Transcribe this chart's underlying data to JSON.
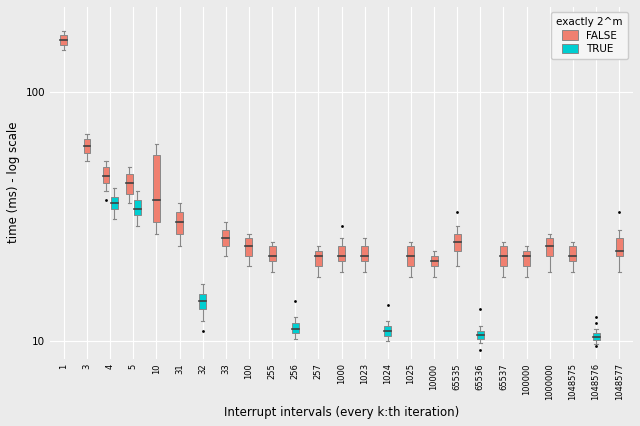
{
  "xlabel": "Interrupt intervals (every k:th iteration)",
  "ylabel": "time (ms) - log scale",
  "background_color": "#EBEBEB",
  "grid_color": "#FFFFFF",
  "false_color": "#F08070",
  "true_color": "#00CED1",
  "median_color": "#404040",
  "whisker_color": "#888888",
  "box_edge_color": "#888888",
  "legend_title": "exactly 2^m",
  "categories": [
    "1",
    "3",
    "4",
    "5",
    "10",
    "31",
    "32",
    "33",
    "100",
    "255",
    "256",
    "257",
    "1000",
    "1023",
    "1024",
    "1025",
    "10000",
    "65535",
    "65536",
    "65537",
    "100000",
    "1000000",
    "1048575",
    "1048576",
    "1048577"
  ],
  "false_data": {
    "1": {
      "q1": 155,
      "med": 162,
      "q3": 170,
      "whislo": 148,
      "whishi": 176,
      "fliers": []
    },
    "3": {
      "q1": 57,
      "med": 61,
      "q3": 65,
      "whislo": 53,
      "whishi": 68,
      "fliers": []
    },
    "4": {
      "q1": 43,
      "med": 46,
      "q3": 50,
      "whislo": 40,
      "whishi": 53,
      "fliers": [
        37
      ]
    },
    "5": {
      "q1": 39,
      "med": 43,
      "q3": 47,
      "whislo": 36,
      "whishi": 50,
      "fliers": []
    },
    "10": {
      "q1": 30,
      "med": 37,
      "q3": 56,
      "whislo": 27,
      "whishi": 62,
      "fliers": []
    },
    "31": {
      "q1": 27,
      "med": 30,
      "q3": 33,
      "whislo": 24,
      "whishi": 36,
      "fliers": []
    },
    "33": {
      "q1": 24,
      "med": 26,
      "q3": 28,
      "whislo": 22,
      "whishi": 30,
      "fliers": []
    },
    "100": {
      "q1": 22,
      "med": 24,
      "q3": 26,
      "whislo": 20,
      "whishi": 27,
      "fliers": []
    },
    "255": {
      "q1": 21,
      "med": 22,
      "q3": 24,
      "whislo": 19,
      "whishi": 25,
      "fliers": []
    },
    "257": {
      "q1": 20,
      "med": 22,
      "q3": 23,
      "whislo": 18,
      "whishi": 24,
      "fliers": []
    },
    "1000": {
      "q1": 21,
      "med": 22,
      "q3": 24,
      "whislo": 19,
      "whishi": 26,
      "fliers": [
        29
      ]
    },
    "1023": {
      "q1": 21,
      "med": 22,
      "q3": 24,
      "whislo": 19,
      "whishi": 26,
      "fliers": []
    },
    "1025": {
      "q1": 20,
      "med": 22,
      "q3": 24,
      "whislo": 18,
      "whishi": 25,
      "fliers": []
    },
    "10000": {
      "q1": 20,
      "med": 21,
      "q3": 22,
      "whislo": 18,
      "whishi": 23,
      "fliers": []
    },
    "65535": {
      "q1": 23,
      "med": 25,
      "q3": 27,
      "whislo": 20,
      "whishi": 29,
      "fliers": [
        33
      ]
    },
    "65537": {
      "q1": 20,
      "med": 22,
      "q3": 24,
      "whislo": 18,
      "whishi": 25,
      "fliers": []
    },
    "100000": {
      "q1": 20,
      "med": 22,
      "q3": 23,
      "whislo": 18,
      "whishi": 24,
      "fliers": []
    },
    "1000000": {
      "q1": 22,
      "med": 24,
      "q3": 26,
      "whislo": 19,
      "whishi": 27,
      "fliers": []
    },
    "1048575": {
      "q1": 21,
      "med": 22,
      "q3": 24,
      "whislo": 19,
      "whishi": 25,
      "fliers": []
    },
    "1048577": {
      "q1": 22,
      "med": 23,
      "q3": 26,
      "whislo": 19,
      "whishi": 28,
      "fliers": [
        33
      ]
    }
  },
  "true_data": {
    "4": {
      "q1": 34,
      "med": 36,
      "q3": 38,
      "whislo": 31,
      "whishi": 41,
      "fliers": []
    },
    "5": {
      "q1": 32,
      "med": 34,
      "q3": 37,
      "whislo": 29,
      "whishi": 40,
      "fliers": []
    },
    "32": {
      "q1": 13.5,
      "med": 14.5,
      "q3": 15.5,
      "whislo": 12,
      "whishi": 17,
      "fliers": [
        11
      ]
    },
    "256": {
      "q1": 10.8,
      "med": 11.2,
      "q3": 11.8,
      "whislo": 10.2,
      "whishi": 12.5,
      "fliers": [
        14.5
      ]
    },
    "1024": {
      "q1": 10.5,
      "med": 11,
      "q3": 11.5,
      "whislo": 10,
      "whishi": 12,
      "fliers": [
        14
      ]
    },
    "65536": {
      "q1": 10.2,
      "med": 10.6,
      "q3": 11,
      "whislo": 9.8,
      "whishi": 11.5,
      "fliers": [
        13.5,
        9.2
      ]
    },
    "1048576": {
      "q1": 10.1,
      "med": 10.4,
      "q3": 10.8,
      "whislo": 9.7,
      "whishi": 11.2,
      "fliers": [
        9.5,
        11.8,
        12.5
      ]
    }
  },
  "ylim_log": [
    8.5,
    220
  ],
  "yticks": [
    10,
    100
  ],
  "ytick_labels": [
    "10",
    "100"
  ]
}
